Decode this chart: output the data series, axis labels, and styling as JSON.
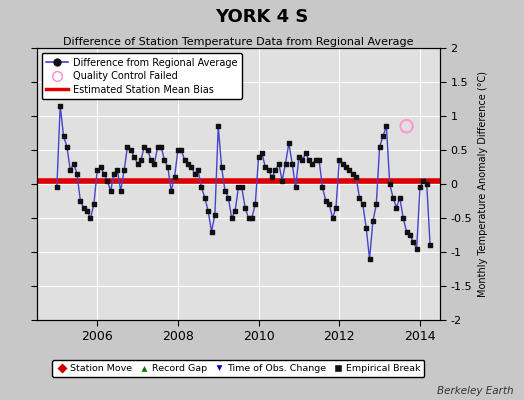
{
  "title": "YORK 4 S",
  "subtitle": "Difference of Station Temperature Data from Regional Average",
  "ylabel_right": "Monthly Temperature Anomaly Difference (°C)",
  "xlim": [
    2004.5,
    2014.5
  ],
  "ylim": [
    -2,
    2
  ],
  "yticks": [
    -2,
    -1.5,
    -1,
    -0.5,
    0,
    0.5,
    1,
    1.5,
    2
  ],
  "xticks": [
    2006,
    2008,
    2010,
    2012,
    2014
  ],
  "bias_value": 0.05,
  "line_color": "#4444cc",
  "marker_color": "#111111",
  "bias_color": "#dd0000",
  "fig_background": "#c8c8c8",
  "ax_background": "#e0e0e0",
  "watermark": "Berkeley Earth",
  "times": [
    2005.0,
    2005.083,
    2005.167,
    2005.25,
    2005.333,
    2005.417,
    2005.5,
    2005.583,
    2005.667,
    2005.75,
    2005.833,
    2005.917,
    2006.0,
    2006.083,
    2006.167,
    2006.25,
    2006.333,
    2006.417,
    2006.5,
    2006.583,
    2006.667,
    2006.75,
    2006.833,
    2006.917,
    2007.0,
    2007.083,
    2007.167,
    2007.25,
    2007.333,
    2007.417,
    2007.5,
    2007.583,
    2007.667,
    2007.75,
    2007.833,
    2007.917,
    2008.0,
    2008.083,
    2008.167,
    2008.25,
    2008.333,
    2008.417,
    2008.5,
    2008.583,
    2008.667,
    2008.75,
    2008.833,
    2008.917,
    2009.0,
    2009.083,
    2009.167,
    2009.25,
    2009.333,
    2009.417,
    2009.5,
    2009.583,
    2009.667,
    2009.75,
    2009.833,
    2009.917,
    2010.0,
    2010.083,
    2010.167,
    2010.25,
    2010.333,
    2010.417,
    2010.5,
    2010.583,
    2010.667,
    2010.75,
    2010.833,
    2010.917,
    2011.0,
    2011.083,
    2011.167,
    2011.25,
    2011.333,
    2011.417,
    2011.5,
    2011.583,
    2011.667,
    2011.75,
    2011.833,
    2011.917,
    2012.0,
    2012.083,
    2012.167,
    2012.25,
    2012.333,
    2012.417,
    2012.5,
    2012.583,
    2012.667,
    2012.75,
    2012.833,
    2012.917,
    2013.0,
    2013.083,
    2013.167,
    2013.25,
    2013.333,
    2013.417,
    2013.5,
    2013.583,
    2013.667,
    2013.75,
    2013.833,
    2013.917,
    2014.0,
    2014.083,
    2014.167,
    2014.25
  ],
  "values": [
    -0.05,
    1.15,
    0.7,
    0.55,
    0.2,
    0.3,
    0.15,
    -0.25,
    -0.35,
    -0.4,
    -0.5,
    -0.3,
    0.2,
    0.25,
    0.15,
    0.05,
    -0.1,
    0.15,
    0.2,
    -0.1,
    0.2,
    0.55,
    0.5,
    0.4,
    0.3,
    0.35,
    0.55,
    0.5,
    0.35,
    0.3,
    0.55,
    0.55,
    0.35,
    0.25,
    -0.1,
    0.1,
    0.5,
    0.5,
    0.35,
    0.3,
    0.25,
    0.15,
    0.2,
    -0.05,
    -0.2,
    -0.4,
    -0.7,
    -0.45,
    0.85,
    0.25,
    -0.1,
    -0.2,
    -0.5,
    -0.4,
    -0.05,
    -0.05,
    -0.35,
    -0.5,
    -0.5,
    -0.3,
    0.4,
    0.45,
    0.25,
    0.2,
    0.1,
    0.2,
    0.3,
    0.05,
    0.3,
    0.6,
    0.3,
    -0.05,
    0.4,
    0.35,
    0.45,
    0.35,
    0.3,
    0.35,
    0.35,
    -0.05,
    -0.25,
    -0.3,
    -0.5,
    -0.35,
    0.35,
    0.3,
    0.25,
    0.2,
    0.15,
    0.1,
    -0.2,
    -0.3,
    -0.65,
    -1.1,
    -0.55,
    -0.3,
    0.55,
    0.7,
    0.85,
    0.0,
    -0.2,
    -0.35,
    -0.2,
    -0.5,
    -0.7,
    -0.75,
    -0.85,
    -0.95,
    -0.05,
    0.05,
    0.0,
    -0.9
  ],
  "qc_fail_times": [
    2013.667
  ],
  "qc_fail_values": [
    0.85
  ]
}
